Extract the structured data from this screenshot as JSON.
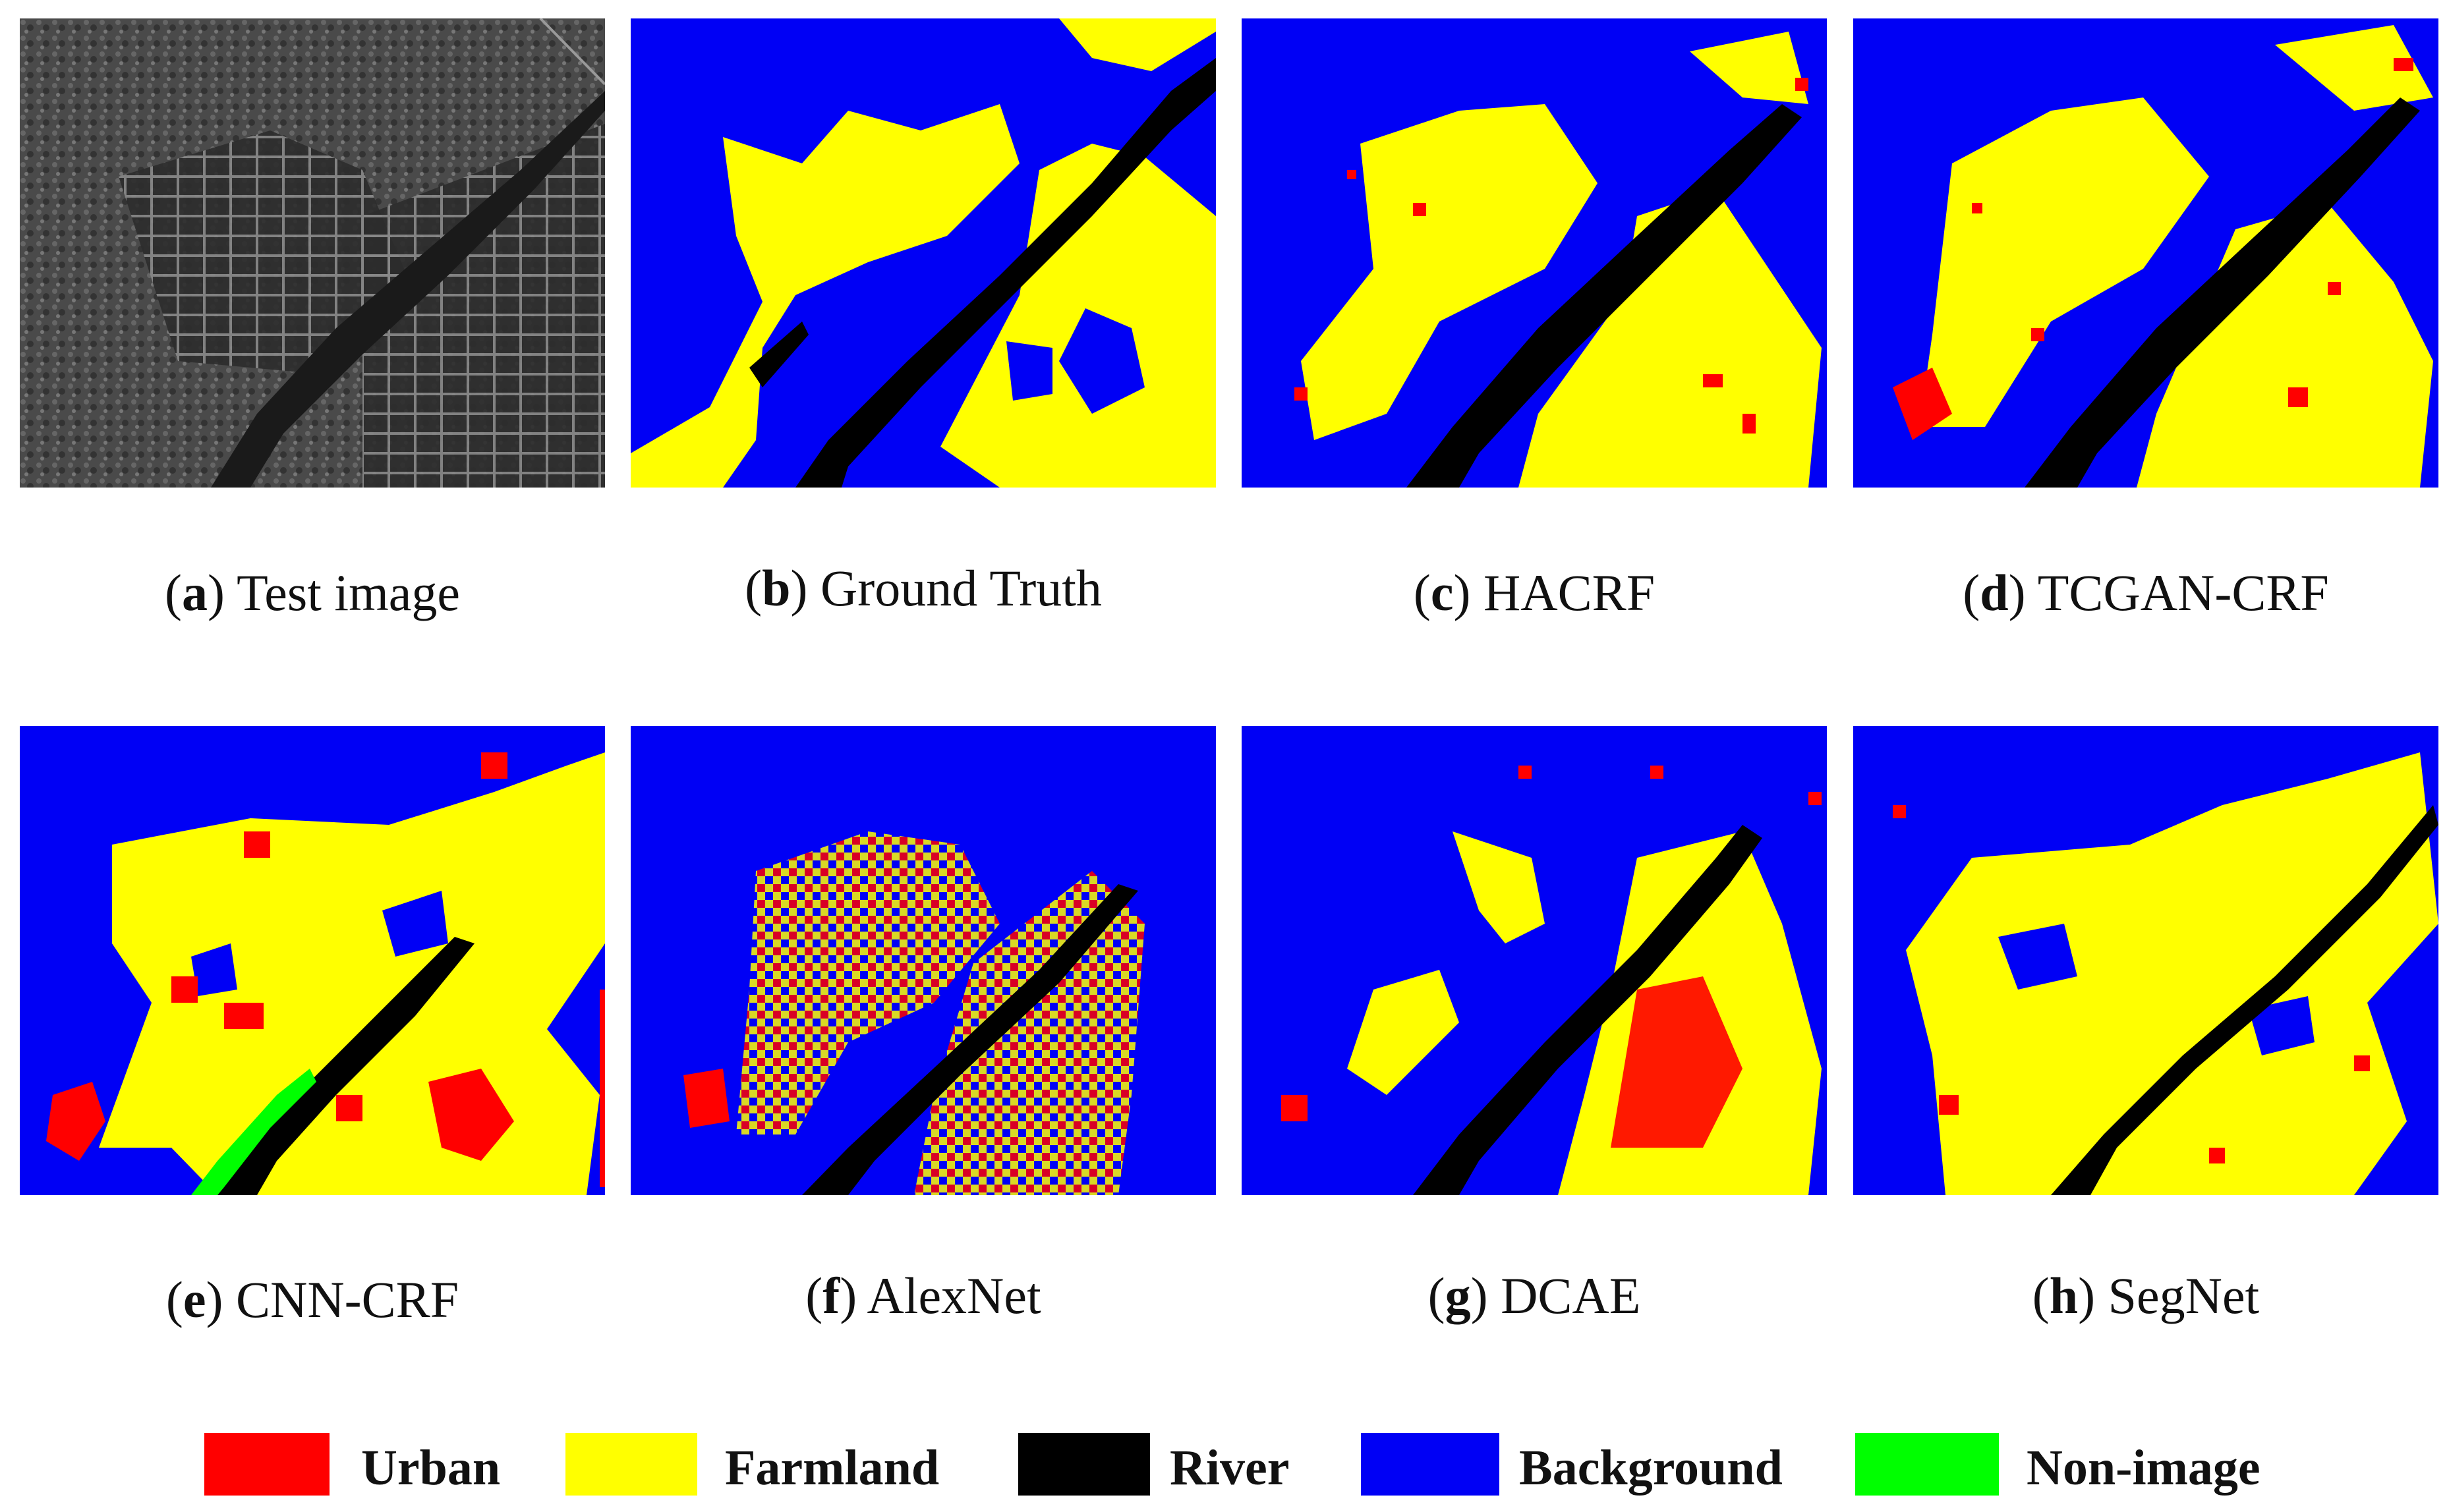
{
  "panels": [
    {
      "letter": "a",
      "title": "Test image"
    },
    {
      "letter": "b",
      "title": "Ground Truth"
    },
    {
      "letter": "c",
      "title": "HACRF"
    },
    {
      "letter": "d",
      "title": "TCGAN-CRF"
    },
    {
      "letter": "e",
      "title": "CNN-CRF"
    },
    {
      "letter": "f",
      "title": "AlexNet"
    },
    {
      "letter": "g",
      "title": "DCAE"
    },
    {
      "letter": "h",
      "title": "SegNet"
    }
  ],
  "legend": [
    {
      "label": "Urban",
      "color": "#ff0000"
    },
    {
      "label": "Farmland",
      "color": "#ffff00"
    },
    {
      "label": "River",
      "color": "#000000"
    },
    {
      "label": "Background",
      "color": "#0000f5"
    },
    {
      "label": "Non-image",
      "color": "#00ff00"
    }
  ]
}
